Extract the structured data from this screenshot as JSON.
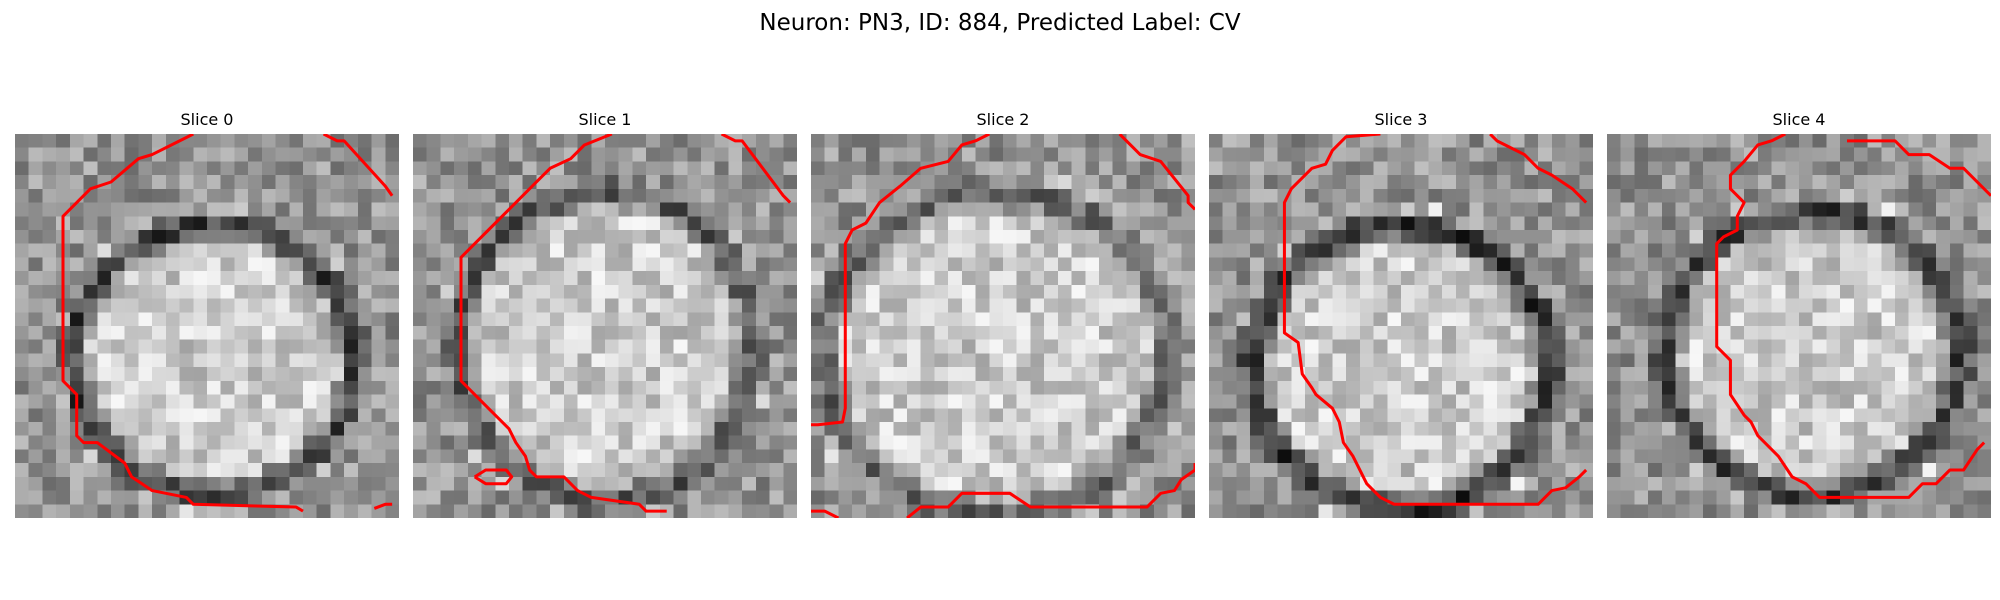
{
  "figure": {
    "suptitle": "Neuron: PN3, ID: 884, Predicted Label: CV"
  },
  "panels": [
    {
      "title": "Slice 0"
    },
    {
      "title": "Slice 1"
    },
    {
      "title": "Slice 2"
    },
    {
      "title": "Slice 3"
    },
    {
      "title": "Slice 4"
    }
  ],
  "colors": {
    "contour": "#ff0000",
    "background": "#ffffff"
  },
  "image_style": {
    "colormap": "grayscale",
    "grid_cells": 28
  }
}
